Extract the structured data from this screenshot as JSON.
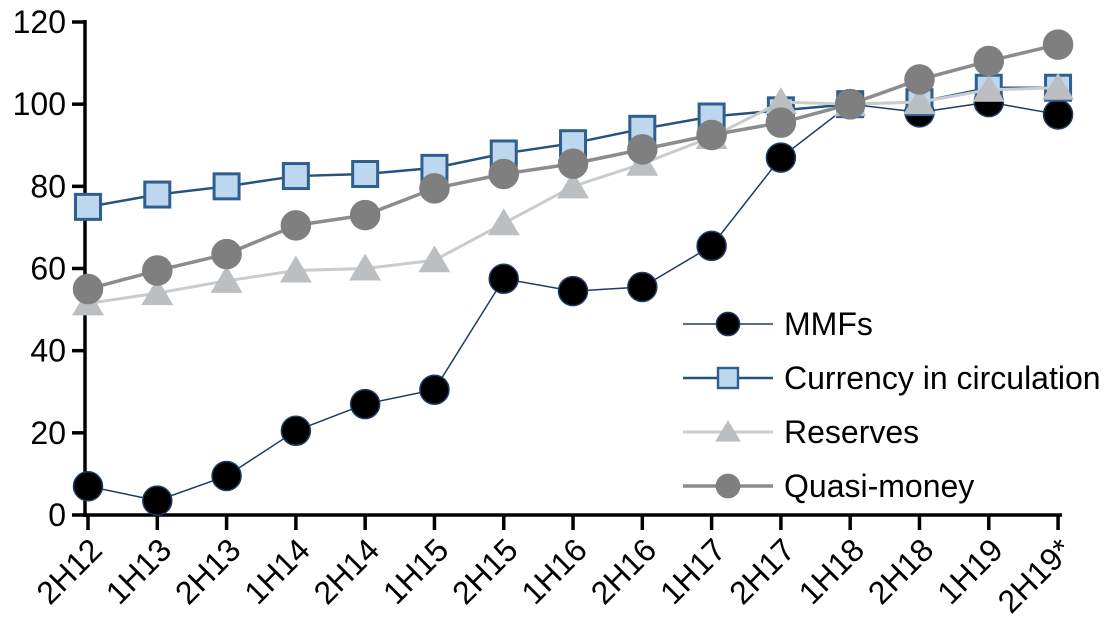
{
  "figure": {
    "background": "#ffffff",
    "text_color": "#000000",
    "axis_color": "#000000"
  },
  "chart_data": {
    "type": "line",
    "title": "",
    "xlabel": "",
    "ylabel": "",
    "grid": false,
    "legend_position": "inside-right",
    "ylim": [
      0,
      120
    ],
    "yticks": [
      0,
      20,
      40,
      60,
      80,
      100,
      120
    ],
    "categories": [
      "2H12",
      "1H13",
      "2H13",
      "1H14",
      "2H14",
      "1H15",
      "2H15",
      "1H16",
      "2H16",
      "1H17",
      "2H17",
      "1H18",
      "2H18",
      "1H19",
      "2H19*"
    ],
    "series": [
      {
        "name": "MMFs",
        "marker": "circle",
        "marker_fill": "#000000",
        "marker_stroke": "#1f3b63",
        "line_color": "#1f3b63",
        "line_width": 1.5,
        "values": [
          7,
          3.5,
          9.5,
          20.5,
          27,
          30.5,
          57.5,
          54.5,
          55.5,
          65.5,
          87,
          100,
          98,
          100.5,
          97.5
        ]
      },
      {
        "name": "Currency in circulation",
        "marker": "square",
        "marker_fill": "#bdd7ee",
        "marker_stroke": "#2e5f8f",
        "line_color": "#26527f",
        "line_width": 2.5,
        "values": [
          75,
          78,
          80,
          82.5,
          83,
          84.5,
          88,
          90.5,
          94,
          97,
          98.5,
          100,
          100.5,
          104,
          104
        ]
      },
      {
        "name": "Reserves",
        "marker": "triangle",
        "marker_fill": "#bcbfc2",
        "marker_stroke": "#bcbfc2",
        "line_color": "#c9cccc",
        "line_width": 3,
        "values": [
          51.5,
          54,
          57,
          59.5,
          60,
          62,
          71,
          80,
          85.5,
          92,
          100.5,
          100,
          100.5,
          103.5,
          104
        ]
      },
      {
        "name": "Quasi-money",
        "marker": "circle",
        "marker_fill": "#7f7f7f",
        "marker_stroke": "#7f7f7f",
        "line_color": "#8c8c8c",
        "line_width": 3.5,
        "values": [
          55,
          59.5,
          63.5,
          70.5,
          73,
          79.5,
          83,
          85.5,
          89,
          92.5,
          95.5,
          100,
          106,
          110.5,
          114.5
        ]
      }
    ]
  }
}
